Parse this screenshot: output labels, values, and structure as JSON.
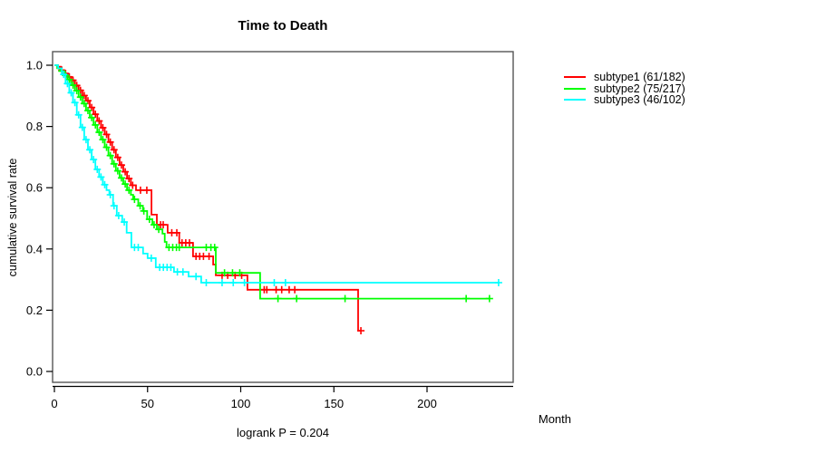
{
  "chart_data": {
    "type": "line",
    "subtype": "kaplan-meier-step",
    "title": "Time to Death",
    "xlabel": "Month",
    "ylabel": "cumulative survival rate",
    "footer": "logrank P = 0.204",
    "xlim": [
      0,
      246
    ],
    "ylim": [
      0.0,
      1.0
    ],
    "grid": "off",
    "legend_position": "right-outside",
    "x_ticks": {
      "values": [
        0,
        50,
        100,
        150,
        200
      ],
      "labels": [
        "0",
        "50",
        "100",
        "150",
        "200"
      ]
    },
    "y_ticks": {
      "values": [
        0.0,
        0.2,
        0.4,
        0.6,
        0.8,
        1.0
      ],
      "labels": [
        "0.0",
        "0.2",
        "0.4",
        "0.6",
        "0.8",
        "1.0"
      ]
    },
    "series": [
      {
        "name": "subtype1",
        "label": "subtype1 (61/182)",
        "events": 61,
        "n": 182,
        "color": "#ff0000",
        "end_month": 164.5,
        "steps": [
          [
            0,
            1.0
          ],
          [
            2,
            0.995
          ],
          [
            3.5,
            0.984
          ],
          [
            5,
            0.973
          ],
          [
            7,
            0.962
          ],
          [
            9,
            0.951
          ],
          [
            11,
            0.934
          ],
          [
            13,
            0.918
          ],
          [
            15,
            0.901
          ],
          [
            17,
            0.884
          ],
          [
            19,
            0.862
          ],
          [
            21,
            0.84
          ],
          [
            23,
            0.818
          ],
          [
            25,
            0.796
          ],
          [
            27,
            0.774
          ],
          [
            29,
            0.749
          ],
          [
            31,
            0.724
          ],
          [
            33,
            0.699
          ],
          [
            35,
            0.674
          ],
          [
            37,
            0.652
          ],
          [
            39,
            0.63
          ],
          [
            41,
            0.608
          ],
          [
            43.8,
            0.592
          ],
          [
            52.1,
            0.512
          ],
          [
            55,
            0.479
          ],
          [
            60.8,
            0.453
          ],
          [
            67,
            0.42
          ],
          [
            74.4,
            0.376
          ],
          [
            85.2,
            0.349
          ],
          [
            86.6,
            0.314
          ],
          [
            103.6,
            0.267
          ],
          [
            163,
            0.133
          ]
        ],
        "censor_months": [
          4,
          6,
          8,
          10,
          12,
          14,
          16,
          18,
          20,
          22,
          24,
          26,
          28,
          30,
          32,
          34,
          36,
          38,
          40,
          42,
          46.2,
          49.6,
          57,
          58.4,
          63,
          65.7,
          68.5,
          70.5,
          72.5,
          76,
          78,
          80,
          83,
          90,
          93,
          97,
          100.5,
          112.6,
          114,
          119,
          122,
          126,
          129,
          164.5
        ]
      },
      {
        "name": "subtype2",
        "label": "subtype2 (75/217)",
        "events": 75,
        "n": 217,
        "color": "#00ff00",
        "end_month": 233.5,
        "steps": [
          [
            0,
            1.0
          ],
          [
            1.5,
            0.99
          ],
          [
            3,
            0.981
          ],
          [
            5,
            0.967
          ],
          [
            7,
            0.953
          ],
          [
            9,
            0.935
          ],
          [
            11,
            0.917
          ],
          [
            13,
            0.896
          ],
          [
            15,
            0.875
          ],
          [
            17,
            0.852
          ],
          [
            19,
            0.829
          ],
          [
            21,
            0.805
          ],
          [
            23,
            0.781
          ],
          [
            25,
            0.757
          ],
          [
            27,
            0.732
          ],
          [
            29,
            0.705
          ],
          [
            31,
            0.678
          ],
          [
            33,
            0.655
          ],
          [
            35,
            0.632
          ],
          [
            37,
            0.612
          ],
          [
            39,
            0.592
          ],
          [
            41,
            0.577
          ],
          [
            42.3,
            0.562
          ],
          [
            45,
            0.541
          ],
          [
            47.5,
            0.524
          ],
          [
            49.8,
            0.497
          ],
          [
            52.6,
            0.479
          ],
          [
            55,
            0.464
          ],
          [
            58,
            0.45
          ],
          [
            59.2,
            0.423
          ],
          [
            60.2,
            0.405
          ],
          [
            86.6,
            0.322
          ],
          [
            110.4,
            0.238
          ]
        ],
        "censor_months": [
          4,
          6,
          8,
          10,
          12,
          14,
          16,
          18,
          20,
          22,
          24,
          26,
          28,
          30,
          32,
          34,
          36,
          38,
          40,
          43,
          46,
          48,
          51,
          53.5,
          56,
          61.5,
          63.5,
          65.5,
          67,
          81.5,
          84,
          86,
          91.3,
          95.6,
          99.5,
          120,
          130,
          156,
          221,
          233.5
        ]
      },
      {
        "name": "subtype3",
        "label": "subtype3 (46/102)",
        "events": 46,
        "n": 102,
        "color": "#00ffff",
        "end_month": 238.4,
        "steps": [
          [
            0,
            1.0
          ],
          [
            2,
            0.99
          ],
          [
            4,
            0.97
          ],
          [
            6,
            0.94
          ],
          [
            8,
            0.91
          ],
          [
            10,
            0.878
          ],
          [
            12,
            0.838
          ],
          [
            14,
            0.797
          ],
          [
            16,
            0.757
          ],
          [
            18,
            0.724
          ],
          [
            20,
            0.692
          ],
          [
            22,
            0.66
          ],
          [
            24,
            0.635
          ],
          [
            26,
            0.61
          ],
          [
            28,
            0.592
          ],
          [
            29.5,
            0.577
          ],
          [
            31.5,
            0.541
          ],
          [
            33.5,
            0.509
          ],
          [
            36.4,
            0.488
          ],
          [
            38.8,
            0.453
          ],
          [
            41.3,
            0.405
          ],
          [
            47.6,
            0.385
          ],
          [
            50,
            0.37
          ],
          [
            54.4,
            0.34
          ],
          [
            64.2,
            0.325
          ],
          [
            72,
            0.31
          ],
          [
            78.8,
            0.29
          ]
        ],
        "censor_months": [
          5,
          7,
          9,
          11,
          13,
          15,
          17,
          19,
          21,
          23,
          25,
          27,
          30,
          32,
          34.5,
          37.5,
          43,
          45,
          52,
          56.5,
          58.5,
          60.5,
          62.5,
          66,
          69,
          76,
          81.5,
          90,
          96,
          102,
          118,
          124,
          238.4
        ]
      }
    ]
  }
}
